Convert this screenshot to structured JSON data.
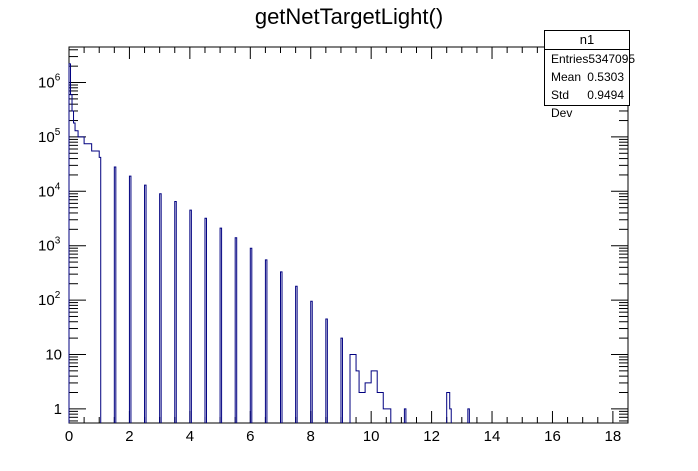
{
  "chart_data": {
    "type": "histogram",
    "title": "getNetTargetLight()",
    "xlabel": "",
    "ylabel": "",
    "xlim": [
      0,
      18.5
    ],
    "ylim": [
      0.55,
      4500000
    ],
    "yscale": "log",
    "grid": false,
    "line_color": "#000080",
    "x_ticks": [
      "0",
      "2",
      "4",
      "6",
      "8",
      "10",
      "12",
      "14",
      "16",
      "18"
    ],
    "y_ticks": [
      {
        "value": 1,
        "label": "1"
      },
      {
        "value": 10,
        "label": "10"
      },
      {
        "value": 100,
        "label": "10",
        "exp": "2"
      },
      {
        "value": 1000,
        "label": "10",
        "exp": "3"
      },
      {
        "value": 10000,
        "label": "10",
        "exp": "4"
      },
      {
        "value": 100000,
        "label": "10",
        "exp": "5"
      },
      {
        "value": 1000000,
        "label": "10",
        "exp": "6"
      }
    ],
    "bin_width": 0.05,
    "bins": [
      {
        "x": 0.0,
        "y": 2200000
      },
      {
        "x": 0.05,
        "y": 600000
      },
      {
        "x": 0.1,
        "y": 300000
      },
      {
        "x": 0.15,
        "y": 180000
      },
      {
        "x": 0.2,
        "y": 130000
      },
      {
        "x": 0.3,
        "y": 100000
      },
      {
        "x": 0.5,
        "y": 75000
      },
      {
        "x": 0.75,
        "y": 55000
      },
      {
        "x": 1.0,
        "y": 42000
      },
      {
        "x": 1.5,
        "y": 28000
      },
      {
        "x": 2.0,
        "y": 19000
      },
      {
        "x": 2.5,
        "y": 13000
      },
      {
        "x": 3.0,
        "y": 9000
      },
      {
        "x": 3.5,
        "y": 6500
      },
      {
        "x": 4.0,
        "y": 4500
      },
      {
        "x": 4.5,
        "y": 3200
      },
      {
        "x": 5.0,
        "y": 2100
      },
      {
        "x": 5.5,
        "y": 1400
      },
      {
        "x": 6.0,
        "y": 900
      },
      {
        "x": 6.5,
        "y": 550
      },
      {
        "x": 7.0,
        "y": 330
      },
      {
        "x": 7.5,
        "y": 180
      },
      {
        "x": 8.0,
        "y": 95
      },
      {
        "x": 8.5,
        "y": 45
      },
      {
        "x": 9.0,
        "y": 20
      },
      {
        "x": 9.3,
        "y": 10
      },
      {
        "x": 9.5,
        "y": 5
      },
      {
        "x": 9.6,
        "y": 2
      },
      {
        "x": 9.8,
        "y": 3
      },
      {
        "x": 10.0,
        "y": 5
      },
      {
        "x": 10.2,
        "y": 2
      },
      {
        "x": 10.4,
        "y": 1
      },
      {
        "x": 10.6,
        "y": 1
      },
      {
        "x": 11.1,
        "y": 1
      },
      {
        "x": 12.5,
        "y": 2
      },
      {
        "x": 12.6,
        "y": 1
      },
      {
        "x": 13.2,
        "y": 1
      }
    ]
  },
  "stats_box": {
    "name": "n1",
    "rows": [
      {
        "label": "Entries",
        "value": "5347095"
      },
      {
        "label": "Mean",
        "value": "0.5303"
      },
      {
        "label": "Std Dev",
        "value": "0.9494"
      }
    ]
  }
}
